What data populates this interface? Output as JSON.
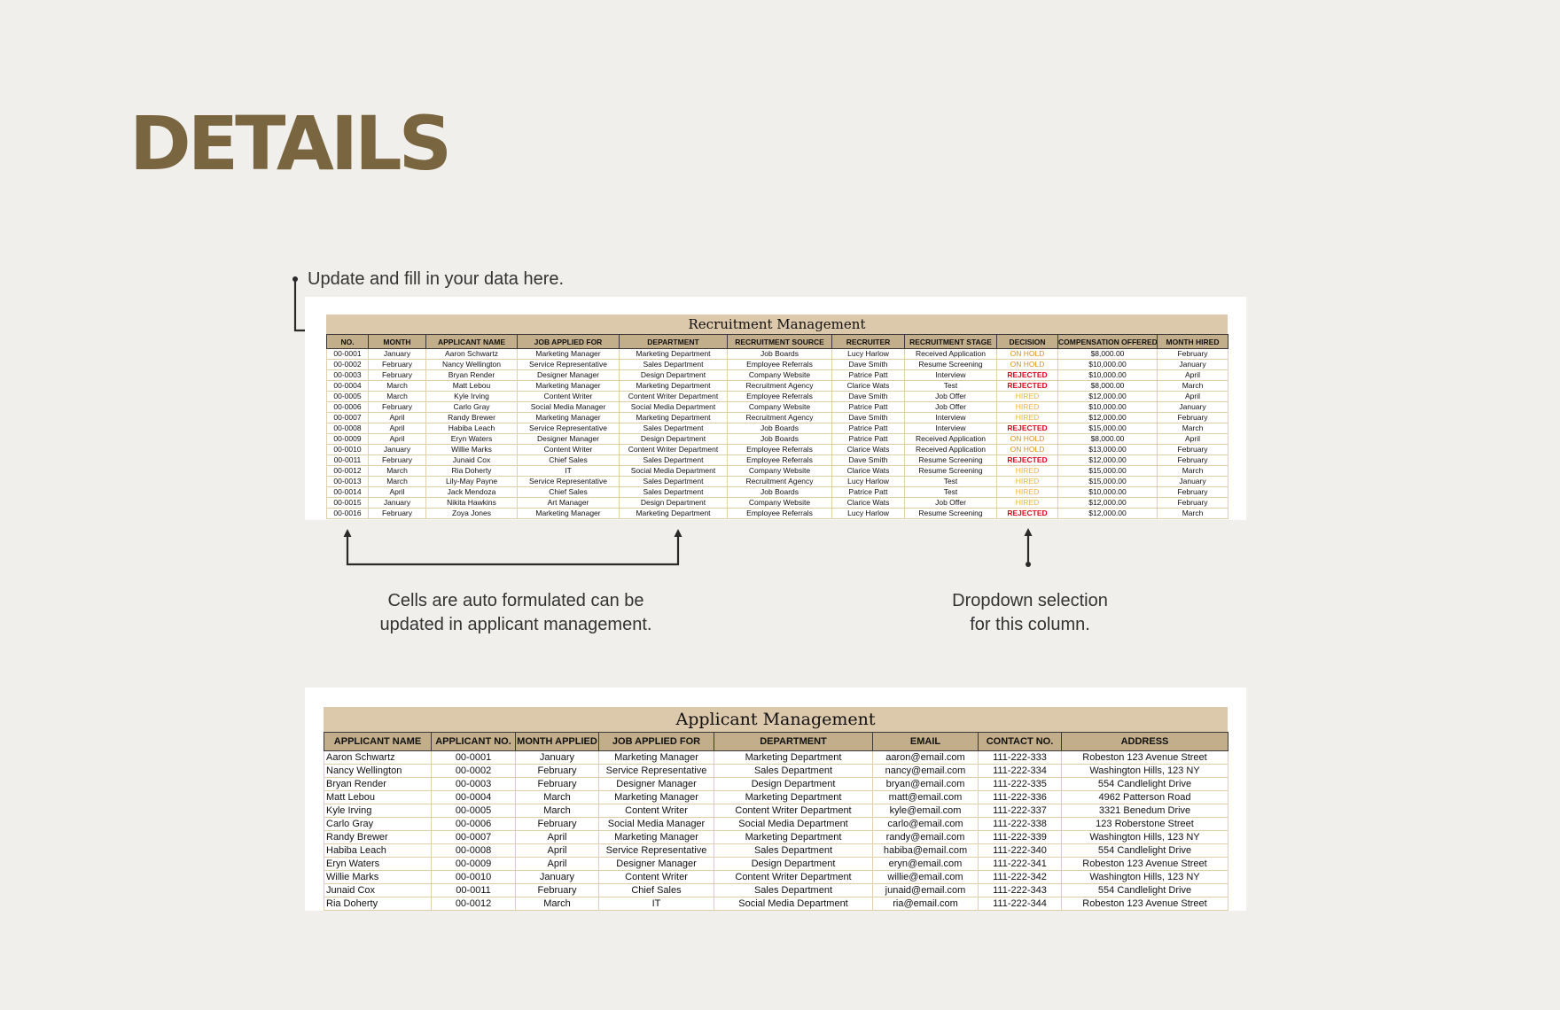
{
  "page": {
    "heading": "DETAILS"
  },
  "notes": {
    "update": "Update and fill in your data here.",
    "auto_line1": "Cells are auto formulated can be",
    "auto_line2": "updated in applicant management.",
    "dropdown_line1": "Dropdown selection",
    "dropdown_line2": "for this column."
  },
  "colors": {
    "heading": "#7a6541",
    "title_bar": "#dcc8aa",
    "header_row": "#c2ae8a",
    "on_hold": "#e58e14",
    "rejected": "#e3001b",
    "hired": "#f2b52a"
  },
  "recruitment": {
    "title": "Recruitment Management",
    "columns": [
      "NO.",
      "MONTH",
      "APPLICANT NAME",
      "JOB APPLIED FOR",
      "DEPARTMENT",
      "RECRUITMENT SOURCE",
      "RECRUITER",
      "RECRUITMENT STAGE",
      "DECISION",
      "COMPENSATION OFFERED",
      "MONTH HIRED"
    ],
    "rows": [
      [
        "00-0001",
        "January",
        "Aaron Schwartz",
        "Marketing Manager",
        "Marketing Department",
        "Job Boards",
        "Lucy Harlow",
        "Received Application",
        "ON HOLD",
        "$8,000.00",
        "February"
      ],
      [
        "00-0002",
        "February",
        "Nancy Wellington",
        "Service Representative",
        "Sales Department",
        "Employee Referrals",
        "Dave Smith",
        "Resume Screening",
        "ON HOLD",
        "$10,000.00",
        "January"
      ],
      [
        "00-0003",
        "February",
        "Bryan Render",
        "Designer Manager",
        "Design Department",
        "Company Website",
        "Patrice Patt",
        "Interview",
        "REJECTED",
        "$10,000.00",
        "April"
      ],
      [
        "00-0004",
        "March",
        "Matt Lebou",
        "Marketing Manager",
        "Marketing Department",
        "Recruitment Agency",
        "Clarice Wats",
        "Test",
        "REJECTED",
        "$8,000.00",
        "March"
      ],
      [
        "00-0005",
        "March",
        "Kyle Irving",
        "Content Writer",
        "Content Writer Department",
        "Employee Referrals",
        "Dave Smith",
        "Job Offer",
        "HIRED",
        "$12,000.00",
        "April"
      ],
      [
        "00-0006",
        "February",
        "Carlo Gray",
        "Social Media Manager",
        "Social Media Department",
        "Company Website",
        "Patrice Patt",
        "Job Offer",
        "HIRED",
        "$10,000.00",
        "January"
      ],
      [
        "00-0007",
        "April",
        "Randy Brewer",
        "Marketing Manager",
        "Marketing Department",
        "Recruitment Agency",
        "Dave Smith",
        "Interview",
        "HIRED",
        "$12,000.00",
        "February"
      ],
      [
        "00-0008",
        "April",
        "Habiba Leach",
        "Service Representative",
        "Sales Department",
        "Job Boards",
        "Patrice Patt",
        "Interview",
        "REJECTED",
        "$15,000.00",
        "March"
      ],
      [
        "00-0009",
        "April",
        "Eryn Waters",
        "Designer Manager",
        "Design Department",
        "Job Boards",
        "Patrice Patt",
        "Received Application",
        "ON HOLD",
        "$8,000.00",
        "April"
      ],
      [
        "00-0010",
        "January",
        "Willie Marks",
        "Content Writer",
        "Content Writer Department",
        "Employee Referrals",
        "Clarice Wats",
        "Received Application",
        "ON HOLD",
        "$13,000.00",
        "February"
      ],
      [
        "00-0011",
        "February",
        "Junaid Cox",
        "Chief Sales",
        "Sales Department",
        "Employee Referrals",
        "Dave Smith",
        "Resume Screening",
        "REJECTED",
        "$12,000.00",
        "February"
      ],
      [
        "00-0012",
        "March",
        "Ria Doherty",
        "IT",
        "Social Media Department",
        "Company Website",
        "Clarice Wats",
        "Resume Screening",
        "HIRED",
        "$15,000.00",
        "March"
      ],
      [
        "00-0013",
        "March",
        "Lily-May Payne",
        "Service Representative",
        "Sales Department",
        "Recruitment Agency",
        "Lucy Harlow",
        "Test",
        "HIRED",
        "$15,000.00",
        "January"
      ],
      [
        "00-0014",
        "April",
        "Jack Mendoza",
        "Chief Sales",
        "Sales Department",
        "Job Boards",
        "Patrice Patt",
        "Test",
        "HIRED",
        "$10,000.00",
        "February"
      ],
      [
        "00-0015",
        "January",
        "Nikita Hawkins",
        "Art Manager",
        "Design Department",
        "Company Website",
        "Clarice Wats",
        "Job Offer",
        "HIRED",
        "$12,000.00",
        "February"
      ],
      [
        "00-0016",
        "February",
        "Zoya Jones",
        "Marketing Manager",
        "Marketing Department",
        "Employee Referrals",
        "Lucy Harlow",
        "Resume Screening",
        "REJECTED",
        "$12,000.00",
        "March"
      ]
    ]
  },
  "applicant": {
    "title": "Applicant Management",
    "columns": [
      "APPLICANT NAME",
      "APPLICANT NO.",
      "MONTH APPLIED",
      "JOB APPLIED FOR",
      "DEPARTMENT",
      "EMAIL",
      "CONTACT NO.",
      "ADDRESS"
    ],
    "rows": [
      [
        "Aaron Schwartz",
        "00-0001",
        "January",
        "Marketing Manager",
        "Marketing Department",
        "aaron@email.com",
        "111-222-333",
        "Robeston 123 Avenue Street"
      ],
      [
        "Nancy Wellington",
        "00-0002",
        "February",
        "Service Representative",
        "Sales Department",
        "nancy@email.com",
        "111-222-334",
        "Washington Hills, 123 NY"
      ],
      [
        "Bryan Render",
        "00-0003",
        "February",
        "Designer Manager",
        "Design Department",
        "bryan@email.com",
        "111-222-335",
        "554 Candlelight Drive"
      ],
      [
        "Matt Lebou",
        "00-0004",
        "March",
        "Marketing Manager",
        "Marketing Department",
        "matt@email.com",
        "111-222-336",
        "4962 Patterson Road"
      ],
      [
        "Kyle Irving",
        "00-0005",
        "March",
        "Content Writer",
        "Content Writer Department",
        "kyle@email.com",
        "111-222-337",
        "3321 Benedum Drive"
      ],
      [
        "Carlo Gray",
        "00-0006",
        "February",
        "Social Media Manager",
        "Social Media Department",
        "carlo@email.com",
        "111-222-338",
        "123 Roberstone Street"
      ],
      [
        "Randy Brewer",
        "00-0007",
        "April",
        "Marketing Manager",
        "Marketing Department",
        "randy@email.com",
        "111-222-339",
        "Washington Hills, 123 NY"
      ],
      [
        "Habiba Leach",
        "00-0008",
        "April",
        "Service Representative",
        "Sales Department",
        "habiba@email.com",
        "111-222-340",
        "554 Candlelight Drive"
      ],
      [
        "Eryn Waters",
        "00-0009",
        "April",
        "Designer Manager",
        "Design Department",
        "eryn@email.com",
        "111-222-341",
        "Robeston 123 Avenue Street"
      ],
      [
        "Willie Marks",
        "00-0010",
        "January",
        "Content Writer",
        "Content Writer Department",
        "willie@email.com",
        "111-222-342",
        "Washington Hills, 123 NY"
      ],
      [
        "Junaid Cox",
        "00-0011",
        "February",
        "Chief Sales",
        "Sales Department",
        "junaid@email.com",
        "111-222-343",
        "554 Candlelight Drive"
      ],
      [
        "Ria Doherty",
        "00-0012",
        "March",
        "IT",
        "Social Media Department",
        "ria@email.com",
        "111-222-344",
        "Robeston 123 Avenue Street"
      ]
    ]
  }
}
